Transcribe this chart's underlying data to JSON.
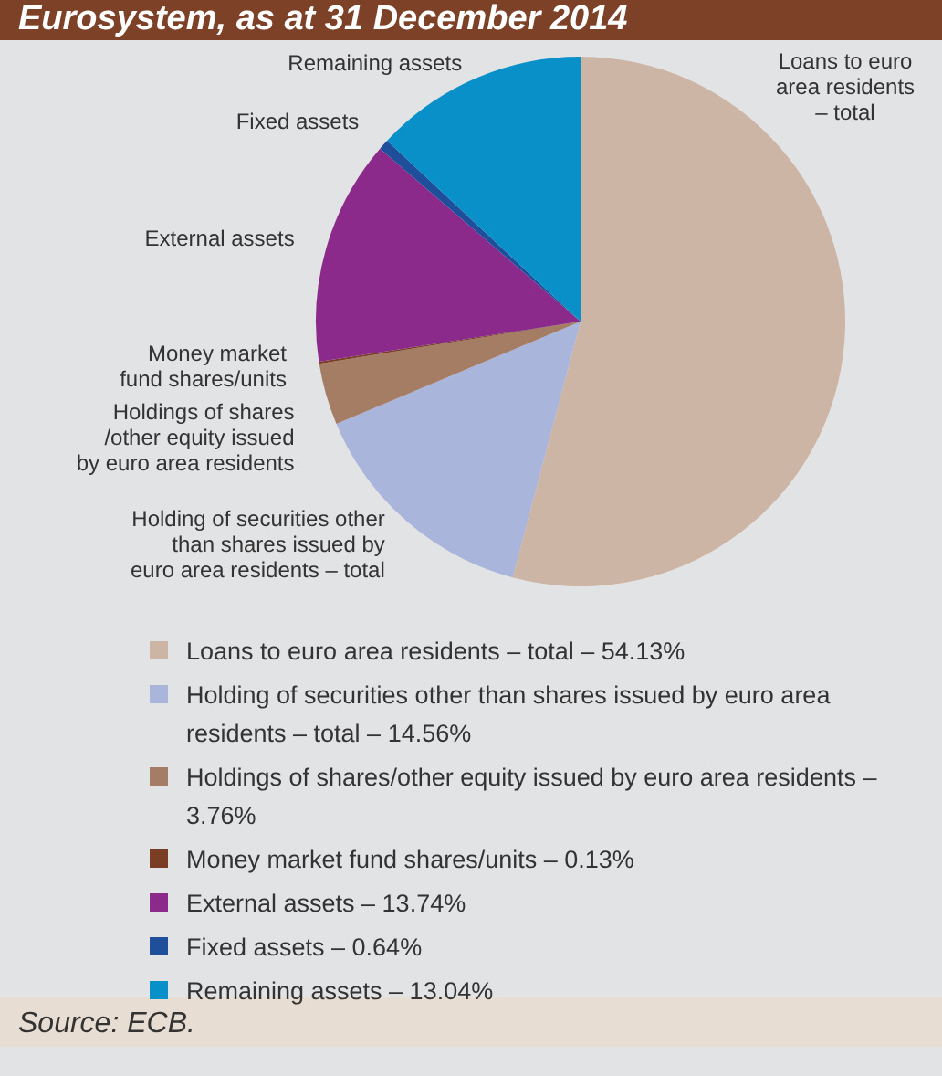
{
  "chart_data": {
    "type": "pie",
    "title": "Eurosystem, as at 31 December 2014",
    "categories": [
      "Loans to euro area residents – total – 54.13%",
      "Holding of securities other than shares issued by euro area residents – total – 14.56%",
      "Holdings of shares/other equity issued by euro area residents – 3.76%",
      "Money market fund shares/units – 0.13%",
      "External assets – 13.74%",
      "Fixed assets – 0.64%",
      "Remaining assets – 13.04%"
    ],
    "values": [
      54.13,
      14.56,
      3.76,
      0.13,
      13.74,
      0.64,
      13.04
    ],
    "value_labels": [
      "Loans to euro\narea residents\n– total",
      "Holding of securities other\nthan shares issued by\neuro area residents – total",
      "Holdings of shares\n/other equity issued\nby euro area residents",
      "Money market\nfund shares/units",
      "External assets",
      "Fixed assets",
      "Remaining assets"
    ],
    "colors": [
      "#cdb5a5",
      "#a9b5da",
      "#a57c64",
      "#7a3e24",
      "#8b2a8b",
      "#1f4f9a",
      "#0a90c8"
    ],
    "legend": "bottom",
    "annotations": [
      "Source: ECB."
    ]
  }
}
